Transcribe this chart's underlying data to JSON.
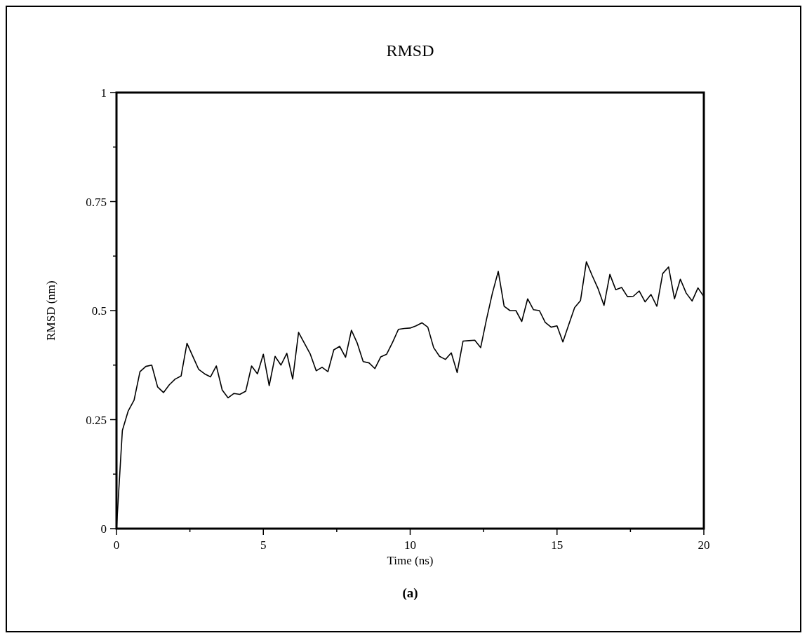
{
  "chart_data": {
    "type": "line",
    "title": "RMSD",
    "xlabel": "Time (ns)",
    "ylabel": "RMSD (nm)",
    "annotations": [
      "(a)"
    ],
    "x": [
      0,
      0.2,
      0.4,
      0.6,
      0.8,
      1,
      1.2,
      1.4,
      1.6,
      1.8,
      2,
      2.2,
      2.4,
      2.6,
      2.8,
      3,
      3.2,
      3.4,
      3.6,
      3.8,
      4,
      4.2,
      4.4,
      4.6,
      4.8,
      5,
      5.2,
      5.4,
      5.6,
      5.8,
      6,
      6.2,
      6.4,
      6.6,
      6.8,
      7,
      7.2,
      7.4,
      7.6,
      7.8,
      8,
      8.2,
      8.4,
      8.6,
      8.8,
      9,
      9.2,
      9.4,
      9.6,
      9.8,
      10,
      10.2,
      10.4,
      10.6,
      10.8,
      11,
      11.2,
      11.4,
      11.6,
      11.8,
      12,
      12.2,
      12.4,
      12.6,
      12.8,
      13,
      13.2,
      13.4,
      13.6,
      13.8,
      14,
      14.2,
      14.4,
      14.6,
      14.8,
      15,
      15.2,
      15.4,
      15.6,
      15.8,
      16,
      16.2,
      16.4,
      16.6,
      16.8,
      17,
      17.2,
      17.4,
      17.6,
      17.8,
      18,
      18.2,
      18.4,
      18.6,
      18.8,
      19,
      19.2,
      19.4,
      19.6,
      19.8,
      20
    ],
    "series": [
      {
        "color": "#000000",
        "values": [
          0,
          0.225,
          0.27,
          0.295,
          0.36,
          0.372,
          0.375,
          0.325,
          0.312,
          0.33,
          0.343,
          0.35,
          0.425,
          0.395,
          0.365,
          0.355,
          0.348,
          0.373,
          0.318,
          0.3,
          0.31,
          0.308,
          0.315,
          0.373,
          0.355,
          0.4,
          0.328,
          0.395,
          0.375,
          0.402,
          0.343,
          0.45,
          0.425,
          0.4,
          0.362,
          0.37,
          0.36,
          0.41,
          0.418,
          0.393,
          0.455,
          0.425,
          0.383,
          0.38,
          0.367,
          0.394,
          0.4,
          0.427,
          0.457,
          0.459,
          0.46,
          0.465,
          0.472,
          0.462,
          0.415,
          0.395,
          0.388,
          0.403,
          0.358,
          0.43,
          0.431,
          0.432,
          0.415,
          0.48,
          0.54,
          0.59,
          0.51,
          0.5,
          0.5,
          0.475,
          0.527,
          0.502,
          0.5,
          0.473,
          0.462,
          0.465,
          0.428,
          0.468,
          0.507,
          0.523,
          0.612,
          0.58,
          0.55,
          0.512,
          0.583,
          0.548,
          0.553,
          0.532,
          0.533,
          0.545,
          0.52,
          0.537,
          0.51,
          0.585,
          0.6,
          0.527,
          0.572,
          0.54,
          0.522,
          0.552,
          0.532
        ]
      }
    ],
    "xlim": [
      0,
      20
    ],
    "ylim": [
      0,
      1
    ],
    "xticks": [
      0,
      {
        "value": 2.5,
        "label": null
      },
      5,
      {
        "value": 7.5,
        "label": null
      },
      10,
      {
        "value": 12.5,
        "label": null
      },
      15,
      {
        "value": 17.5,
        "label": null
      },
      20
    ],
    "yticks": [
      0,
      {
        "value": 0.125,
        "label": null
      },
      0.25,
      {
        "value": 0.375,
        "label": null
      },
      0.5,
      {
        "value": 0.625,
        "label": null
      },
      0.75,
      {
        "value": 0.875,
        "label": null
      },
      1
    ],
    "grid": false,
    "marker": "none",
    "line_style": "solid"
  }
}
